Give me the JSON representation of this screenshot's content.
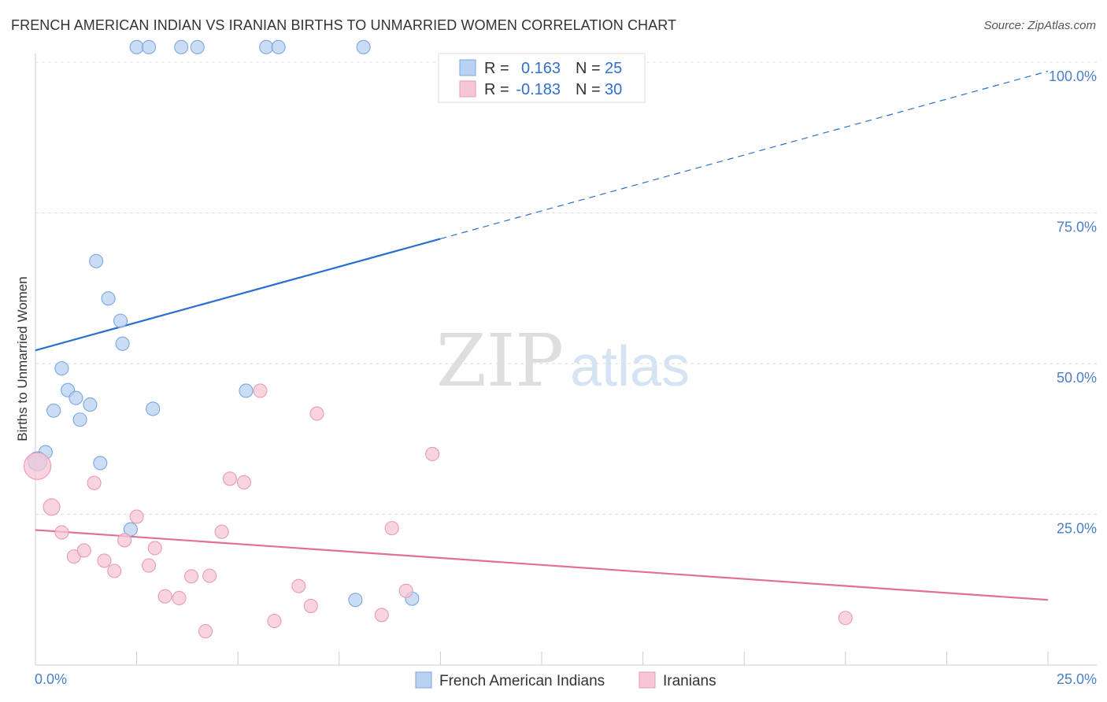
{
  "title": "FRENCH AMERICAN INDIAN VS IRANIAN BIRTHS TO UNMARRIED WOMEN CORRELATION CHART",
  "source": "Source: ZipAtlas.com",
  "watermark": {
    "zip": "ZIP",
    "atlas": "atlas"
  },
  "colors": {
    "blue_fill": "#b8d2f2",
    "blue_stroke": "#7aa6de",
    "blue_line": "#2a6fcf",
    "pink_fill": "#f6c6d6",
    "pink_stroke": "#e99ab5",
    "pink_line": "#e0709a",
    "grid": "#dddddd",
    "tick_text": "#4a7fc8"
  },
  "chart_data": {
    "type": "scatter",
    "title": "FRENCH AMERICAN INDIAN VS IRANIAN BIRTHS TO UNMARRIED WOMEN CORRELATION CHART",
    "xlabel": "",
    "ylabel": "Births to Unmarried Women",
    "xlim": [
      0,
      25
    ],
    "ylim": [
      0,
      100
    ],
    "x_tick_labels": [
      "0.0%",
      "25.0%"
    ],
    "y_tick_labels": [
      "25.0%",
      "50.0%",
      "75.0%",
      "100.0%"
    ],
    "y_tick_values": [
      25,
      50,
      75,
      100
    ],
    "grid": true,
    "legend_position": "top-center",
    "legend": [
      {
        "r_label": "R =",
        "r_value": "0.163",
        "n_label": "N =",
        "n_value": "25"
      },
      {
        "r_label": "R =",
        "r_value": "-0.183",
        "n_label": "N =",
        "n_value": "30"
      }
    ],
    "series": [
      {
        "name": "French American Indians",
        "color": "#b8d2f2",
        "points": [
          {
            "x": 2.5,
            "y": 102.5
          },
          {
            "x": 2.8,
            "y": 102.5
          },
          {
            "x": 3.6,
            "y": 102.5
          },
          {
            "x": 4.0,
            "y": 102.5
          },
          {
            "x": 5.7,
            "y": 102.5
          },
          {
            "x": 6.0,
            "y": 102.5
          },
          {
            "x": 8.1,
            "y": 102.5
          },
          {
            "x": 1.5,
            "y": 67.0
          },
          {
            "x": 1.8,
            "y": 60.8
          },
          {
            "x": 2.1,
            "y": 57.1
          },
          {
            "x": 2.15,
            "y": 53.3
          },
          {
            "x": 0.65,
            "y": 49.2
          },
          {
            "x": 0.8,
            "y": 45.6
          },
          {
            "x": 1.0,
            "y": 44.3
          },
          {
            "x": 1.35,
            "y": 43.2
          },
          {
            "x": 0.45,
            "y": 42.2
          },
          {
            "x": 1.1,
            "y": 40.7
          },
          {
            "x": 2.9,
            "y": 42.5
          },
          {
            "x": 5.2,
            "y": 45.5
          },
          {
            "x": 0.25,
            "y": 35.3
          },
          {
            "x": 0.05,
            "y": 33.8
          },
          {
            "x": 1.6,
            "y": 33.5
          },
          {
            "x": 2.35,
            "y": 22.5
          },
          {
            "x": 7.9,
            "y": 10.8
          },
          {
            "x": 9.3,
            "y": 11.0
          }
        ],
        "trend": {
          "x0": 0,
          "y0": 52.2,
          "x1": 10,
          "y1": 70.7,
          "dashed_to_x": 25,
          "dashed_to_y": 98.5
        }
      },
      {
        "name": "Iranians",
        "color": "#f6c6d6",
        "points": [
          {
            "x": 0.05,
            "y": 33.0
          },
          {
            "x": 0.4,
            "y": 26.2
          },
          {
            "x": 0.65,
            "y": 22.0
          },
          {
            "x": 0.95,
            "y": 18.0
          },
          {
            "x": 1.2,
            "y": 19.0
          },
          {
            "x": 1.45,
            "y": 30.2
          },
          {
            "x": 1.7,
            "y": 17.3
          },
          {
            "x": 1.95,
            "y": 15.6
          },
          {
            "x": 2.2,
            "y": 20.7
          },
          {
            "x": 2.5,
            "y": 24.6
          },
          {
            "x": 2.8,
            "y": 16.5
          },
          {
            "x": 2.95,
            "y": 19.4
          },
          {
            "x": 3.2,
            "y": 11.4
          },
          {
            "x": 3.55,
            "y": 11.1
          },
          {
            "x": 3.85,
            "y": 14.7
          },
          {
            "x": 4.2,
            "y": 5.6
          },
          {
            "x": 4.3,
            "y": 14.8
          },
          {
            "x": 4.6,
            "y": 22.1
          },
          {
            "x": 4.8,
            "y": 30.9
          },
          {
            "x": 5.15,
            "y": 30.3
          },
          {
            "x": 5.55,
            "y": 45.5
          },
          {
            "x": 5.9,
            "y": 7.3
          },
          {
            "x": 6.5,
            "y": 13.1
          },
          {
            "x": 6.8,
            "y": 9.8
          },
          {
            "x": 6.95,
            "y": 41.7
          },
          {
            "x": 8.55,
            "y": 8.3
          },
          {
            "x": 8.8,
            "y": 22.7
          },
          {
            "x": 9.15,
            "y": 12.3
          },
          {
            "x": 9.8,
            "y": 35.0
          },
          {
            "x": 20.0,
            "y": 7.8
          }
        ],
        "trend": {
          "x0": 0,
          "y0": 22.4,
          "x1": 25,
          "y1": 10.8
        }
      }
    ]
  }
}
